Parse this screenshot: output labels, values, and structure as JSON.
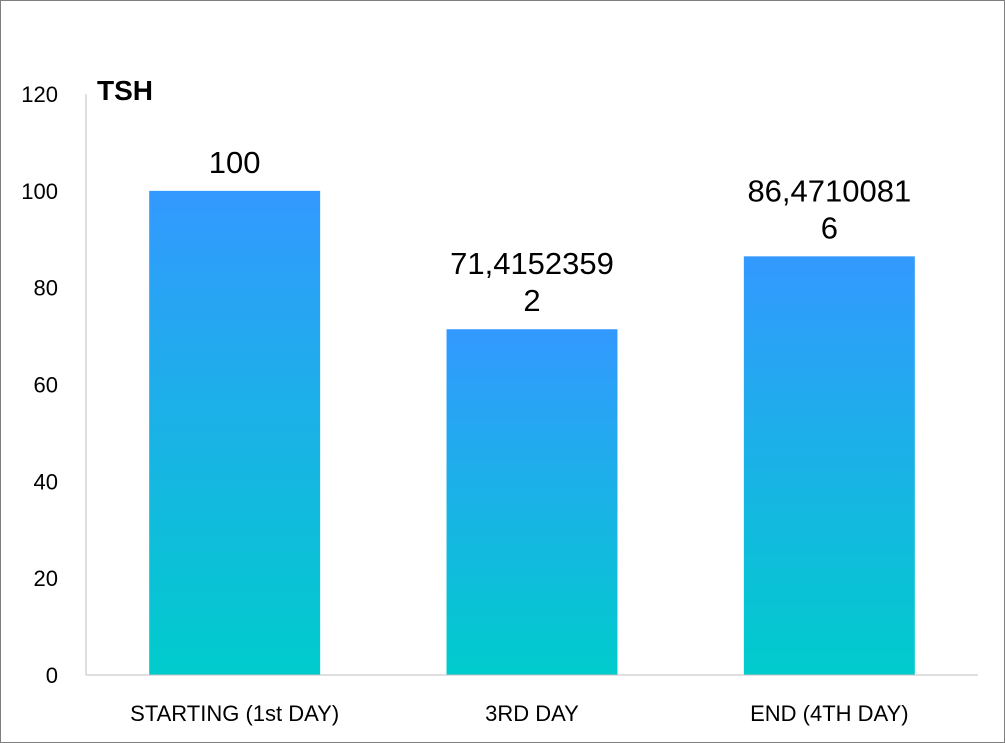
{
  "chart_data": {
    "type": "bar",
    "title": "TSH",
    "xlabel": "",
    "ylabel": "",
    "categories": [
      "STARTING (1st DAY)",
      "3RD DAY",
      "END (4TH DAY)"
    ],
    "values": [
      100,
      71.41523592,
      86.47100816
    ],
    "data_labels": [
      [
        "100"
      ],
      [
        "71,4152359",
        "2"
      ],
      [
        "86,4710081",
        "6"
      ]
    ],
    "ylim": [
      0,
      120
    ],
    "yticks": [
      0,
      20,
      40,
      60,
      80,
      100,
      120
    ],
    "grid": false,
    "legend": "none",
    "colors": {
      "bar_top": "#3399ff",
      "bar_bottom": "#00cccc",
      "axis": "#bfbfbf",
      "frame": "#7f7f7f"
    }
  }
}
